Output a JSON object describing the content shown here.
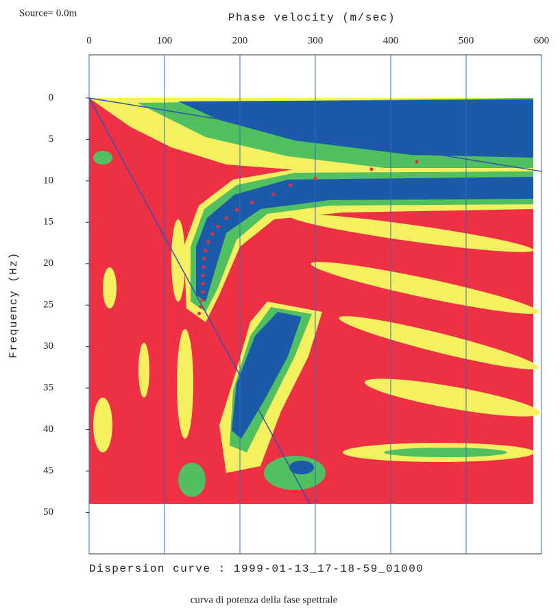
{
  "chart_data": {
    "type": "scatter",
    "source_label": "Source= 0.0m",
    "x_label": "Phase velocity (m/sec)",
    "y_label": "Frequency (Hz)",
    "caption": "Dispersion curve : 1999-01-13_17-18-59_01000",
    "subtitle": "curva di potenza della fase spettrale",
    "x_axis_position": "top",
    "y_inverted": true,
    "xlim": [
      0,
      600
    ],
    "xticks": [
      0,
      100,
      200,
      300,
      400,
      500,
      600
    ],
    "ylim": [
      -5.2,
      55
    ],
    "yticks": [
      0,
      5,
      10,
      15,
      20,
      25,
      30,
      35,
      40,
      45,
      50
    ],
    "grid": true,
    "series": [
      {
        "color": "#e8303a",
        "x": [
          434.5,
          374.5,
          300,
          267,
          244.5,
          216,
          196,
          182,
          171,
          163.6,
          158,
          154.5,
          152.7,
          152,
          151,
          151,
          151,
          150,
          148,
          146,
          144.5,
          143,
          142
        ],
        "y": [
          7.7,
          8.6,
          9.7,
          10.5,
          11.6,
          12.6,
          13.5,
          14.5,
          15.5,
          16.4,
          17.4,
          18.4,
          19.4,
          20.4,
          21.4,
          22.4,
          23.4,
          24.4,
          25.2,
          26.0,
          27.0,
          27.9,
          28.3
        ]
      }
    ]
  }
}
